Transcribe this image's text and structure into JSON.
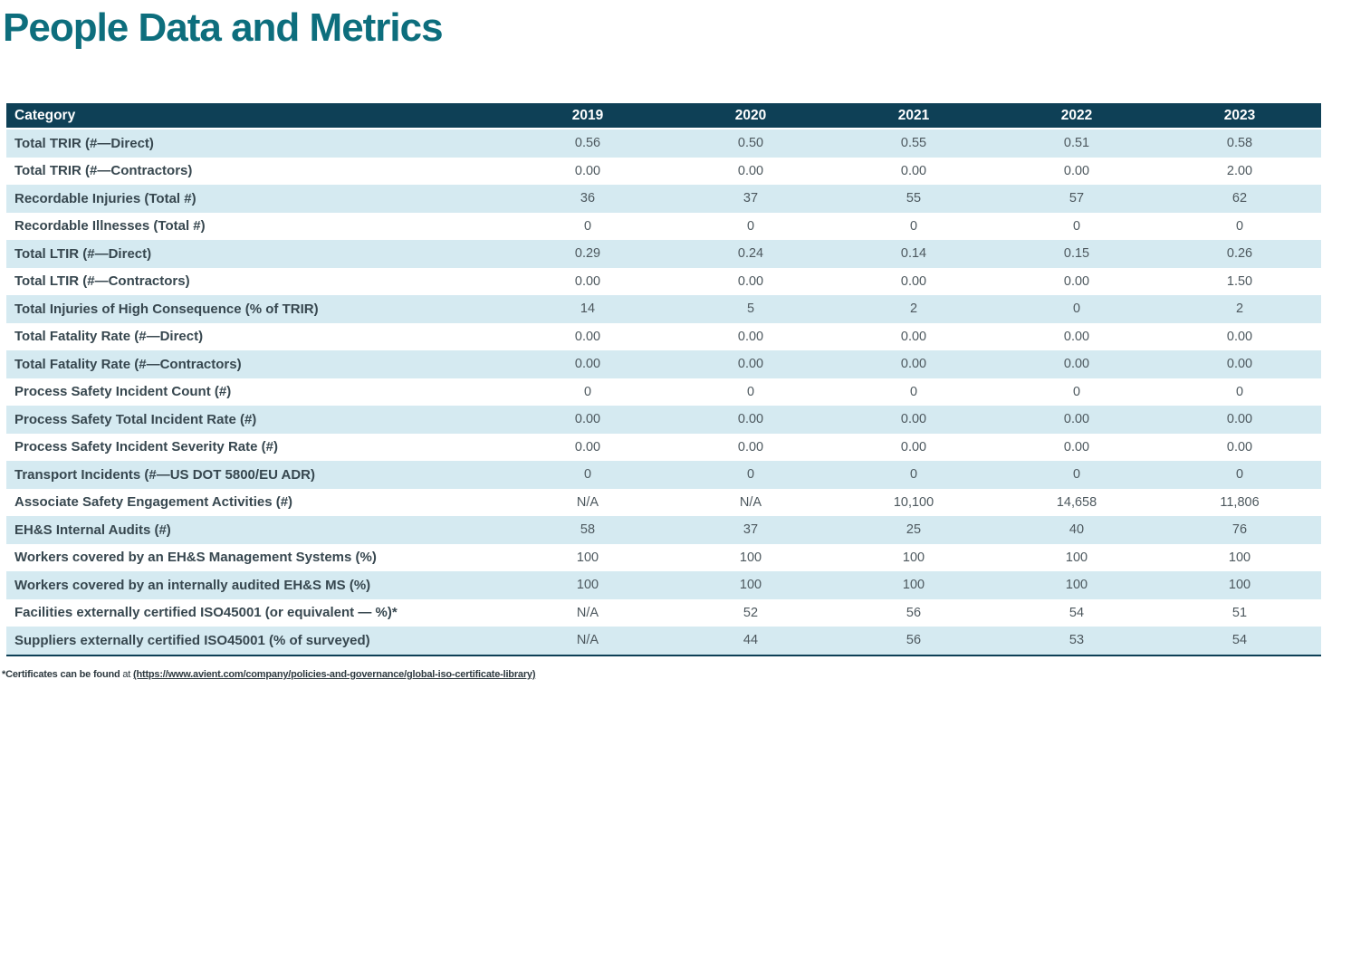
{
  "page_title": "People Data and Metrics",
  "colors": {
    "title_teal": "#0d6e7d",
    "header_bg": "#0e4056",
    "row_stripe": "#d5eaf1"
  },
  "table": {
    "columns": [
      "Category",
      "2019",
      "2020",
      "2021",
      "2022",
      "2023"
    ],
    "rows": [
      {
        "label": "Total TRIR (#—Direct)",
        "values": [
          "0.56",
          "0.50",
          "0.55",
          "0.51",
          "0.58"
        ]
      },
      {
        "label": "Total TRIR (#—Contractors)",
        "values": [
          "0.00",
          "0.00",
          "0.00",
          "0.00",
          "2.00"
        ]
      },
      {
        "label": "Recordable Injuries (Total #)",
        "values": [
          "36",
          "37",
          "55",
          "57",
          "62"
        ]
      },
      {
        "label": "Recordable Illnesses (Total #)",
        "values": [
          "0",
          "0",
          "0",
          "0",
          "0"
        ]
      },
      {
        "label": "Total LTIR (#—Direct)",
        "values": [
          "0.29",
          "0.24",
          "0.14",
          "0.15",
          "0.26"
        ]
      },
      {
        "label": "Total LTIR (#—Contractors)",
        "values": [
          "0.00",
          "0.00",
          "0.00",
          "0.00",
          "1.50"
        ]
      },
      {
        "label": "Total Injuries of High Consequence (% of TRIR)",
        "values": [
          "14",
          "5",
          "2",
          "0",
          "2"
        ]
      },
      {
        "label": "Total Fatality Rate (#—Direct)",
        "values": [
          "0.00",
          "0.00",
          "0.00",
          "0.00",
          "0.00"
        ]
      },
      {
        "label": "Total Fatality Rate (#—Contractors)",
        "values": [
          "0.00",
          "0.00",
          "0.00",
          "0.00",
          "0.00"
        ]
      },
      {
        "label": "Process Safety Incident Count (#)",
        "values": [
          "0",
          "0",
          "0",
          "0",
          "0"
        ]
      },
      {
        "label": "Process Safety Total Incident Rate (#)",
        "values": [
          "0.00",
          "0.00",
          "0.00",
          "0.00",
          "0.00"
        ]
      },
      {
        "label": "Process Safety Incident Severity Rate (#)",
        "values": [
          "0.00",
          "0.00",
          "0.00",
          "0.00",
          "0.00"
        ]
      },
      {
        "label": "Transport Incidents (#—US DOT 5800/EU ADR)",
        "values": [
          "0",
          "0",
          "0",
          "0",
          "0"
        ]
      },
      {
        "label": "Associate Safety Engagement Activities (#)",
        "values": [
          "N/A",
          "N/A",
          "10,100",
          "14,658",
          "11,806"
        ]
      },
      {
        "label": "EH&S Internal Audits (#)",
        "values": [
          "58",
          "37",
          "25",
          "40",
          "76"
        ]
      },
      {
        "label": "Workers covered by an EH&S Management Systems (%)",
        "values": [
          "100",
          "100",
          "100",
          "100",
          "100"
        ]
      },
      {
        "label": "Workers covered by an internally audited EH&S MS (%)",
        "values": [
          "100",
          "100",
          "100",
          "100",
          "100"
        ]
      },
      {
        "label": "Facilities externally certified ISO45001 (or equivalent — %)*",
        "values": [
          "N/A",
          "52",
          "56",
          "54",
          "51"
        ]
      },
      {
        "label": "Suppliers externally certified ISO45001 (% of surveyed)",
        "values": [
          "N/A",
          "44",
          "56",
          "53",
          "54"
        ]
      }
    ]
  },
  "footnote": {
    "prefix": "*Certificates can be found",
    "connector": " at ",
    "link_text": "(https://www.avient.com/company/policies-and-governance/global-iso-certificate-library)"
  }
}
